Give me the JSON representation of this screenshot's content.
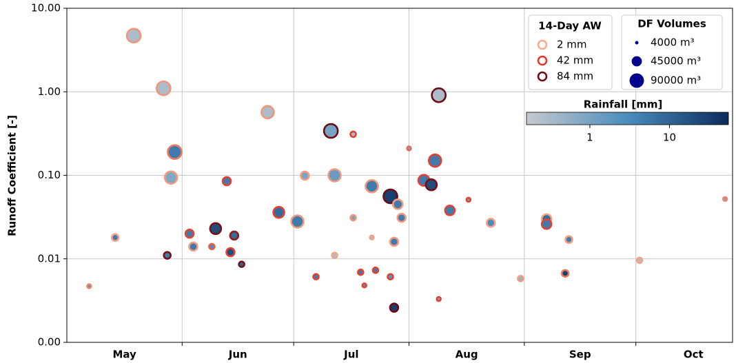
{
  "chart_data": {
    "type": "scatter",
    "ylabel": "Runoff Coefficient [-]",
    "log_y": true,
    "ylim": [
      0.001,
      10
    ],
    "yticks": [
      {
        "value": 10,
        "label": "10.00"
      },
      {
        "value": 1,
        "label": "1.00"
      },
      {
        "value": 0.1,
        "label": "0.10"
      },
      {
        "value": 0.01,
        "label": "0.01"
      },
      {
        "value": 0.001,
        "label": "0.00"
      }
    ],
    "xlim": [
      0,
      179
    ],
    "xticks": [
      {
        "value": 15.5,
        "label": "May"
      },
      {
        "value": 46,
        "label": "Jun"
      },
      {
        "value": 76.5,
        "label": "Jul"
      },
      {
        "value": 107.5,
        "label": "Aug"
      },
      {
        "value": 138,
        "label": "Sep"
      },
      {
        "value": 168.5,
        "label": "Oct"
      }
    ],
    "xgrid": [
      31,
      61,
      92,
      123,
      153
    ],
    "grid": true,
    "x": [
      6,
      13,
      18,
      26,
      27,
      29,
      28,
      33,
      34,
      39,
      40,
      43,
      44,
      45,
      47,
      54,
      57,
      62,
      64,
      67,
      71,
      72,
      72,
      77,
      77,
      79,
      80,
      82,
      82,
      83,
      87,
      87,
      88,
      88,
      89,
      90,
      92,
      96,
      98,
      99,
      100,
      100,
      103,
      108,
      114,
      122,
      129,
      129,
      134,
      135,
      154,
      177
    ],
    "values": [
      0.0047,
      0.018,
      4.7,
      1.1,
      0.011,
      0.19,
      0.094,
      0.02,
      0.014,
      0.014,
      0.023,
      0.085,
      0.012,
      0.019,
      0.0086,
      0.57,
      0.036,
      0.028,
      0.099,
      0.0061,
      0.34,
      0.1,
      0.011,
      0.31,
      0.031,
      0.0069,
      0.0048,
      0.074,
      0.018,
      0.0073,
      0.056,
      0.0061,
      0.0026,
      0.016,
      0.045,
      0.031,
      0.21,
      0.087,
      0.077,
      0.15,
      0.0033,
      0.91,
      0.038,
      0.051,
      0.027,
      0.0058,
      0.03,
      0.026,
      0.0067,
      0.017,
      0.0096,
      0.052
    ],
    "sizes": [
      7000,
      20000,
      82000,
      82000,
      20000,
      82000,
      66000,
      29000,
      29000,
      13000,
      52000,
      29000,
      29000,
      29000,
      13000,
      66000,
      52000,
      66000,
      29000,
      13000,
      82000,
      66000,
      13000,
      13000,
      13000,
      13000,
      7000,
      66000,
      7000,
      13000,
      82000,
      13000,
      29000,
      29000,
      40000,
      29000,
      7000,
      52000,
      52000,
      66000,
      7000,
      82000,
      40000,
      7000,
      29000,
      13000,
      40000,
      40000,
      20000,
      20000,
      13000,
      7000
    ],
    "aw": [
      15,
      5,
      10,
      10,
      80,
      20,
      8,
      40,
      8,
      30,
      80,
      40,
      40,
      70,
      80,
      10,
      40,
      8,
      8,
      40,
      84,
      8,
      5,
      40,
      10,
      40,
      40,
      10,
      5,
      40,
      84,
      40,
      84,
      8,
      8,
      8,
      25,
      40,
      80,
      40,
      40,
      84,
      40,
      40,
      5,
      8,
      5,
      40,
      20,
      8,
      5,
      15
    ],
    "rainfall": [
      2,
      5,
      0.3,
      0.3,
      5,
      5,
      0.8,
      5,
      5,
      3,
      20,
      5,
      20,
      8,
      10,
      0.3,
      8,
      5,
      1,
      5,
      1,
      1.5,
      0.3,
      0.3,
      1,
      5,
      2,
      5,
      0.3,
      5,
      30,
      2,
      30,
      5,
      5,
      5,
      1,
      5,
      20,
      5,
      1,
      0.3,
      5,
      1,
      3,
      0.5,
      8,
      5,
      30,
      5,
      0.3,
      1
    ],
    "aw_title": "14-Day AW",
    "aw_legend": [
      {
        "value": 2,
        "label": "2 mm"
      },
      {
        "value": 42,
        "label": "42 mm"
      },
      {
        "value": 84,
        "label": "84 mm"
      }
    ],
    "aw_colors": [
      "#f8ab8c",
      "#e2372a",
      "#6b0a13"
    ],
    "size_title": "DF Volumes",
    "size_legend": [
      {
        "value": 4000,
        "label": "4000 m³"
      },
      {
        "value": 45000,
        "label": "45000 m³"
      },
      {
        "value": 90000,
        "label": "90000 m³"
      }
    ],
    "size_color": "#00008b",
    "rainfall_title": "Rainfall [mm]",
    "rainfall_lim": [
      0.16,
      55
    ],
    "rainfall_ticks": [
      1,
      10
    ],
    "rainfall_colors": [
      "#c6c9ce",
      "#4b8dbc",
      "#0b2b5c"
    ]
  }
}
